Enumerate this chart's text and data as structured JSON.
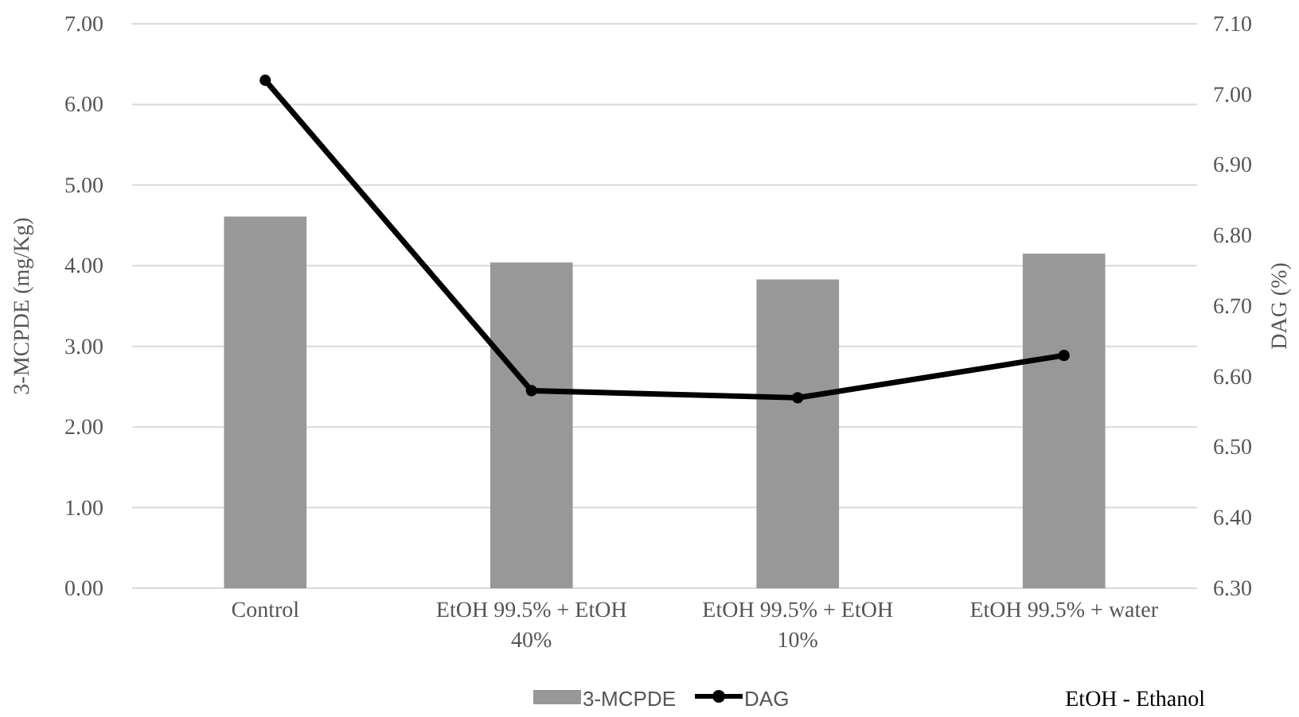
{
  "chart_data": {
    "type": "bar",
    "categories": [
      "Control",
      "EtOH 99.5% + EtOH 40%",
      "EtOH 99.5% + EtOH 10%",
      "EtOH 99.5% + water"
    ],
    "series": [
      {
        "name": "3-MCPDE",
        "color": "#989898",
        "values": [
          4.61,
          4.04,
          3.83,
          4.15
        ]
      },
      {
        "name": "DAG",
        "type": "line",
        "axis": "y2",
        "color": "#000000",
        "values": [
          7.02,
          6.58,
          6.57,
          6.63
        ]
      }
    ],
    "ylabel": "3-MCPDE (mg/Kg)",
    "y2label": "DAG (%)",
    "ylim": [
      0,
      7
    ],
    "yticks": [
      {
        "value": 0,
        "label": "0.00"
      },
      {
        "value": 1,
        "label": "1.00"
      },
      {
        "value": 2,
        "label": "2.00"
      },
      {
        "value": 3,
        "label": "3.00"
      },
      {
        "value": 4,
        "label": "4.00"
      },
      {
        "value": 5,
        "label": "5.00"
      },
      {
        "value": 6,
        "label": "6.00"
      },
      {
        "value": 7,
        "label": "7.00"
      }
    ],
    "y2lim": [
      6.3,
      7.1
    ],
    "y2ticks": [
      {
        "value": 6.3,
        "label": "6.30"
      },
      {
        "value": 6.4,
        "label": "6.40"
      },
      {
        "value": 6.5,
        "label": "6.50"
      },
      {
        "value": 6.6,
        "label": "6.60"
      },
      {
        "value": 6.7,
        "label": "6.70"
      },
      {
        "value": 6.8,
        "label": "6.80"
      },
      {
        "value": 6.9,
        "label": "6.90"
      },
      {
        "value": 7.0,
        "label": "7.00"
      },
      {
        "value": 7.1,
        "label": "7.10"
      }
    ],
    "grid": "y",
    "legend": "bottom",
    "marker": "circle",
    "line_style": "solid",
    "annotations": [
      "EtOH - Ethanol"
    ]
  }
}
